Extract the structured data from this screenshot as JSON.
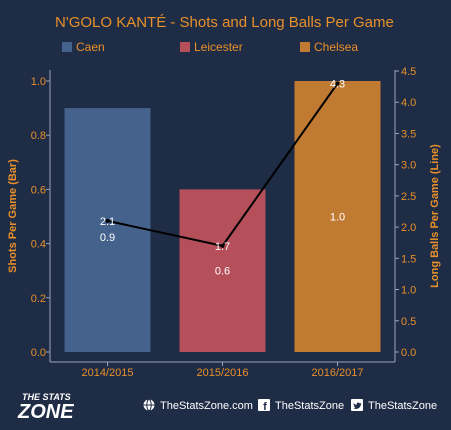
{
  "chart_data": {
    "type": "bar",
    "title": "N'GOLO KANTÉ  - Shots and Long Balls Per Game",
    "categories": [
      "2014/2015",
      "2015/2016",
      "2016/2017"
    ],
    "legend": [
      "Caen",
      "Leicester",
      "Chelsea"
    ],
    "legend_placement": "top",
    "bar_series": {
      "values": [
        0.9,
        0.6,
        1.0
      ],
      "labels": [
        "0.9",
        "0.6",
        "1.0"
      ],
      "colors": [
        "#45628c",
        "#b5505a",
        "#c07a32"
      ]
    },
    "line_series": {
      "values": [
        2.1,
        1.7,
        4.3
      ],
      "labels": [
        "2.1",
        "1.7",
        "4.3"
      ],
      "color": "#000000"
    },
    "ylabel_left": "Shots Per Game (Bar)",
    "ylabel_right": "Long Balls Per Game (Line)",
    "ylim_left": [
      0,
      1.0
    ],
    "ylim_right": [
      0,
      4.5
    ],
    "yticks_left": [
      "0.0",
      "0.2",
      "0.4",
      "0.6",
      "0.8",
      "1.0"
    ],
    "yticks_right": [
      "0.0",
      "0.5",
      "1.0",
      "1.5",
      "2.0",
      "2.5",
      "3.0",
      "3.5",
      "4.0",
      "4.5"
    ],
    "grid": false
  },
  "footer": {
    "logo_top": "THE STATS",
    "logo_bottom": "ZONE",
    "website": "TheStatsZone.com",
    "facebook": "TheStatsZone",
    "twitter": "TheStatsZone",
    "icons": [
      "globe-icon",
      "facebook-icon",
      "twitter-icon"
    ]
  },
  "colors": {
    "background": "#1f2c45",
    "text_accent": "#e8902a",
    "axis_line": "#9aa3b5"
  }
}
